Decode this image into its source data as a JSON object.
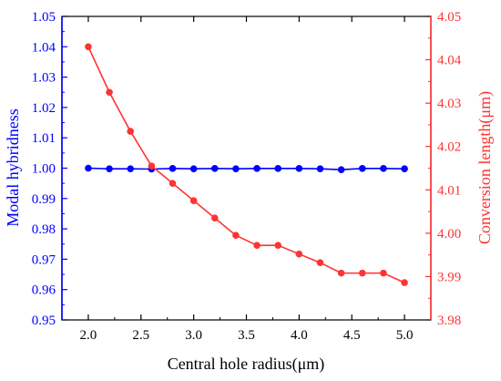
{
  "chart_data": {
    "type": "line",
    "title": "",
    "xlabel": "Central hole radius(μm)",
    "xlim": [
      1.75,
      5.25
    ],
    "x_ticks": [
      "2.0",
      "2.5",
      "3.0",
      "3.5",
      "4.0",
      "4.5",
      "5.0"
    ],
    "left_axis": {
      "label": "Modal hybridness",
      "color": "#0000ff",
      "ylim": [
        0.95,
        1.05
      ],
      "ticks": [
        "0.95",
        "0.96",
        "0.97",
        "0.98",
        "0.99",
        "1.00",
        "1.01",
        "1.02",
        "1.03",
        "1.04",
        "1.05"
      ]
    },
    "right_axis": {
      "label": "Conversion length(μm)",
      "color": "#ff3333",
      "ylim": [
        3.98,
        4.05
      ],
      "ticks": [
        "3.98",
        "3.99",
        "4.00",
        "4.01",
        "4.02",
        "4.03",
        "4.04",
        "4.05"
      ]
    },
    "x": [
      2.0,
      2.2,
      2.4,
      2.6,
      2.8,
      3.0,
      3.2,
      3.4,
      3.6,
      3.8,
      4.0,
      4.2,
      4.4,
      4.6,
      4.8,
      5.0
    ],
    "series": [
      {
        "axis": "left",
        "color": "#0000ff",
        "values": [
          1.0,
          0.9998,
          0.9998,
          0.9997,
          0.9999,
          0.9998,
          0.9999,
          0.9998,
          0.9999,
          0.9999,
          0.9999,
          0.9998,
          0.9995,
          0.9999,
          0.9999,
          0.9998
        ]
      },
      {
        "axis": "right",
        "color": "#ff3333",
        "values": [
          4.043,
          4.0325,
          4.0235,
          4.0155,
          4.0115,
          4.0075,
          4.0035,
          3.9995,
          3.9972,
          3.9972,
          3.9952,
          3.9932,
          3.9908,
          3.9908,
          3.9908,
          3.9886
        ]
      }
    ],
    "grid": false,
    "legend": "none"
  }
}
